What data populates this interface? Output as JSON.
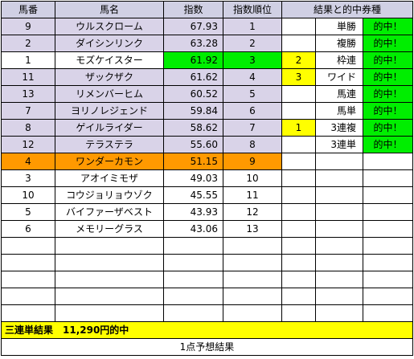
{
  "headers": {
    "col1": "馬番",
    "col2": "馬名",
    "col3": "指数",
    "col4": "指数順位",
    "col5": "結果と的中券種"
  },
  "rows": [
    {
      "no": "9",
      "name": "ウルスクローム",
      "index": "67.93",
      "rank": "1",
      "res_place": "",
      "bet_type": "単勝",
      "hit": "的中！",
      "style": "lav"
    },
    {
      "no": "2",
      "name": "ダイシンリンク",
      "index": "63.28",
      "rank": "2",
      "res_place": "",
      "bet_type": "複勝",
      "hit": "的中！",
      "style": "lav"
    },
    {
      "no": "1",
      "name": "モズケイスター",
      "index": "61.92",
      "rank": "3",
      "res_place": "2",
      "bet_type": "枠連",
      "hit": "的中！",
      "style": "green"
    },
    {
      "no": "11",
      "name": "ザックザク",
      "index": "61.62",
      "rank": "4",
      "res_place": "3",
      "bet_type": "ワイド",
      "hit": "的中！",
      "style": "lav"
    },
    {
      "no": "13",
      "name": "リメンバーヒム",
      "index": "60.52",
      "rank": "5",
      "res_place": "",
      "bet_type": "馬連",
      "hit": "的中！",
      "style": "lav"
    },
    {
      "no": "7",
      "name": "ヨリノレジェンド",
      "index": "59.84",
      "rank": "6",
      "res_place": "",
      "bet_type": "馬単",
      "hit": "的中！",
      "style": "lav"
    },
    {
      "no": "8",
      "name": "ゲイルライダー",
      "index": "58.62",
      "rank": "7",
      "res_place": "1",
      "bet_type": "3連複",
      "hit": "的中！",
      "style": "lav"
    },
    {
      "no": "12",
      "name": "テラステラ",
      "index": "55.60",
      "rank": "8",
      "res_place": "",
      "bet_type": "3連単",
      "hit": "的中！",
      "style": "lav"
    },
    {
      "no": "4",
      "name": "ワンダーカモン",
      "index": "51.15",
      "rank": "9",
      "res_place": "",
      "bet_type": "",
      "hit": "",
      "style": "orange"
    },
    {
      "no": "3",
      "name": "アオイミモザ",
      "index": "49.03",
      "rank": "10",
      "res_place": "",
      "bet_type": "",
      "hit": "",
      "style": "plain"
    },
    {
      "no": "10",
      "name": "コウジョリョウゾク",
      "index": "45.55",
      "rank": "11",
      "res_place": "",
      "bet_type": "",
      "hit": "",
      "style": "plain"
    },
    {
      "no": "5",
      "name": "バイファーザベスト",
      "index": "43.93",
      "rank": "12",
      "res_place": "",
      "bet_type": "",
      "hit": "",
      "style": "plain"
    },
    {
      "no": "6",
      "name": "メモリーグラス",
      "index": "43.06",
      "rank": "13",
      "res_place": "",
      "bet_type": "",
      "hit": "",
      "style": "plain"
    }
  ],
  "empty_rows": 5,
  "result": "三連単結果　11,290円的中",
  "footer": "1点予想結果"
}
